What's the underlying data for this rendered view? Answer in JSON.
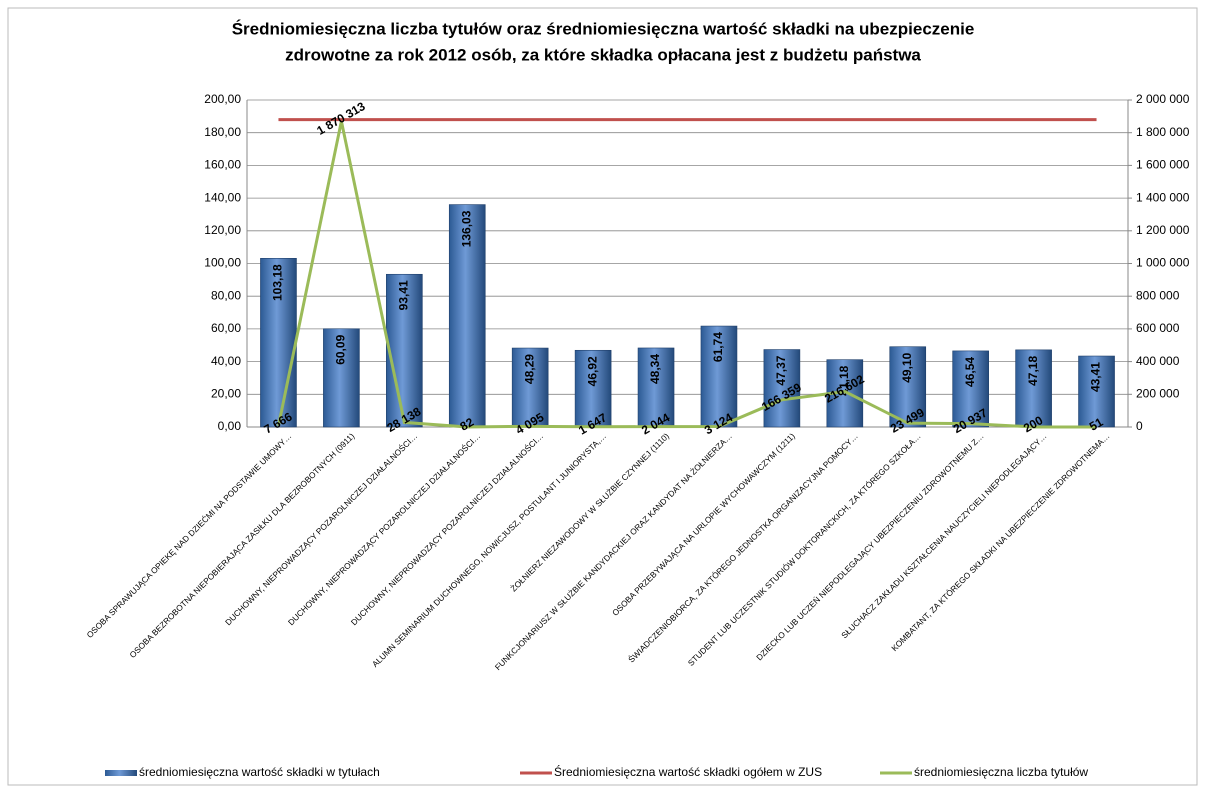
{
  "chart_data": {
    "type": "bar",
    "title": "Średniomiesięczna liczba tytułów oraz średniomiesięczna wartość składki na ubezpieczenie",
    "subtitle": "zdrowotne za rok 2012 osób, za które składka opłacana jest z budżetu państwa",
    "categories": [
      "OSOBA SPRAWUJĄCA OPIEKĘ NAD DZIEĆMI NA PODSTAWIE UMOWY…",
      "OSOBA BEZROBOTNA NIEPOBIERAJĄCA ZASIŁKU DLA BEZROBOTNYCH (0911)",
      "DUCHOWNY, NIEPROWADZĄCY POZAROLNICZEJ DZIAŁALNOŚCI…",
      "DUCHOWNY, NIEPROWADZĄCY POZAROLNICZEJ DZIAŁALNOŚCI…",
      "DUCHOWNY, NIEPROWADZĄCY POZAROLNICZEJ DZIAŁALNOŚCI…",
      "ALUMN SEMINARIUM DUCHOWNEGO, NOWICJUSZ, POSTULANT I JUNIORYSTA,…",
      "ŻOŁNIERZ NIEZAWODOWY W SŁUŻBIE CZYNNEJ (1110)",
      "FUNKCJONARIUSZ W SŁUŻBIE KANDYDACKIEJ ORAZ KANDYDAT NA ŻOŁNIERZA…",
      "OSOBA PRZEBYWAJĄCA NA URLOPIE WYCHOWAWCZYM (1211)",
      "ŚWIADCZENIOBIORCA, ZA KTÓREGO JEDNOSTKA ORGANIZACYJNA POMOCY…",
      "STUDENT LUB UCZESTNIK STUDIÓW DOKTORANCKICH, ZA KTÓREGO SZKOŁA…",
      "DZIECKO LUB UCZEŃ NIEPODLEGAJĄCY UBEZPIECZENIU ZDROWOTNEMU Z…",
      "SŁUCHACZ ZAKŁADU KSZTAŁCENIA NAUCZYCIELI NIEPODLEGAJĄCY…",
      "KOMBATANT, ZA KTÓREGO SKŁADKI NA UBEZPIECZENIE ZDROWOTNEMA…"
    ],
    "series": [
      {
        "name": "średniomiesięczna wartość składki w tytułach",
        "type": "bar",
        "color": "#4f81bd",
        "values": [
          103.18,
          60.09,
          93.41,
          136.03,
          48.29,
          46.92,
          48.34,
          61.74,
          47.37,
          41.18,
          49.1,
          46.54,
          47.18,
          43.41
        ],
        "value_labels": [
          "103,18",
          "60,09",
          "93,41",
          "136,03",
          "48,29",
          "46,92",
          "48,34",
          "61,74",
          "47,37",
          "41,18",
          "49,10",
          "46,54",
          "47,18",
          "43,41"
        ]
      },
      {
        "name": "Średniomiesięczna wartość składki ogółem w ZUS",
        "type": "line",
        "color": "#c0504d",
        "values": [
          188,
          188,
          188,
          188,
          188,
          188,
          188,
          188,
          188,
          188,
          188,
          188,
          188,
          188
        ]
      },
      {
        "name": "średniomiesięczna liczba tytułów",
        "type": "line",
        "color": "#9bbb59",
        "axis": "y2",
        "values": [
          7666,
          1870313,
          28138,
          82,
          4095,
          1647,
          2044,
          3124,
          166359,
          216602,
          23499,
          20937,
          200,
          51
        ],
        "value_labels": [
          "7 666",
          "1 870 313",
          "28 138",
          "82",
          "4 095",
          "1 647",
          "2 044",
          "3 124",
          "166 359",
          "216 602",
          "23 499",
          "20 937",
          "200",
          "51"
        ]
      }
    ],
    "ylim": [
      0,
      200
    ],
    "yticks": [
      {
        "value": 0,
        "label": "0,00"
      },
      {
        "value": 20,
        "label": "20,00"
      },
      {
        "value": 40,
        "label": "40,00"
      },
      {
        "value": 60,
        "label": "60,00"
      },
      {
        "value": 80,
        "label": "80,00"
      },
      {
        "value": 100,
        "label": "100,00"
      },
      {
        "value": 120,
        "label": "120,00"
      },
      {
        "value": 140,
        "label": "140,00"
      },
      {
        "value": 160,
        "label": "160,00"
      },
      {
        "value": 180,
        "label": "180,00"
      },
      {
        "value": 200,
        "label": "200,00"
      }
    ],
    "y2lim": [
      0,
      2000000
    ],
    "y2ticks": [
      0,
      {
        "value": 200000,
        "label": "200 000"
      },
      {
        "value": 400000,
        "label": "400 000"
      },
      {
        "value": 600000,
        "label": "600 000"
      },
      {
        "value": 800000,
        "label": "800 000"
      },
      {
        "value": 1000000,
        "label": "1 000 000"
      },
      {
        "value": 1200000,
        "label": "1 200 000"
      },
      {
        "value": 1400000,
        "label": "1 400 000"
      },
      {
        "value": 1600000,
        "label": "1 600 000"
      },
      {
        "value": 1800000,
        "label": "1 800 000"
      },
      {
        "value": 2000000,
        "label": "2 000 000"
      }
    ],
    "grid": true,
    "legend": "bottom"
  }
}
